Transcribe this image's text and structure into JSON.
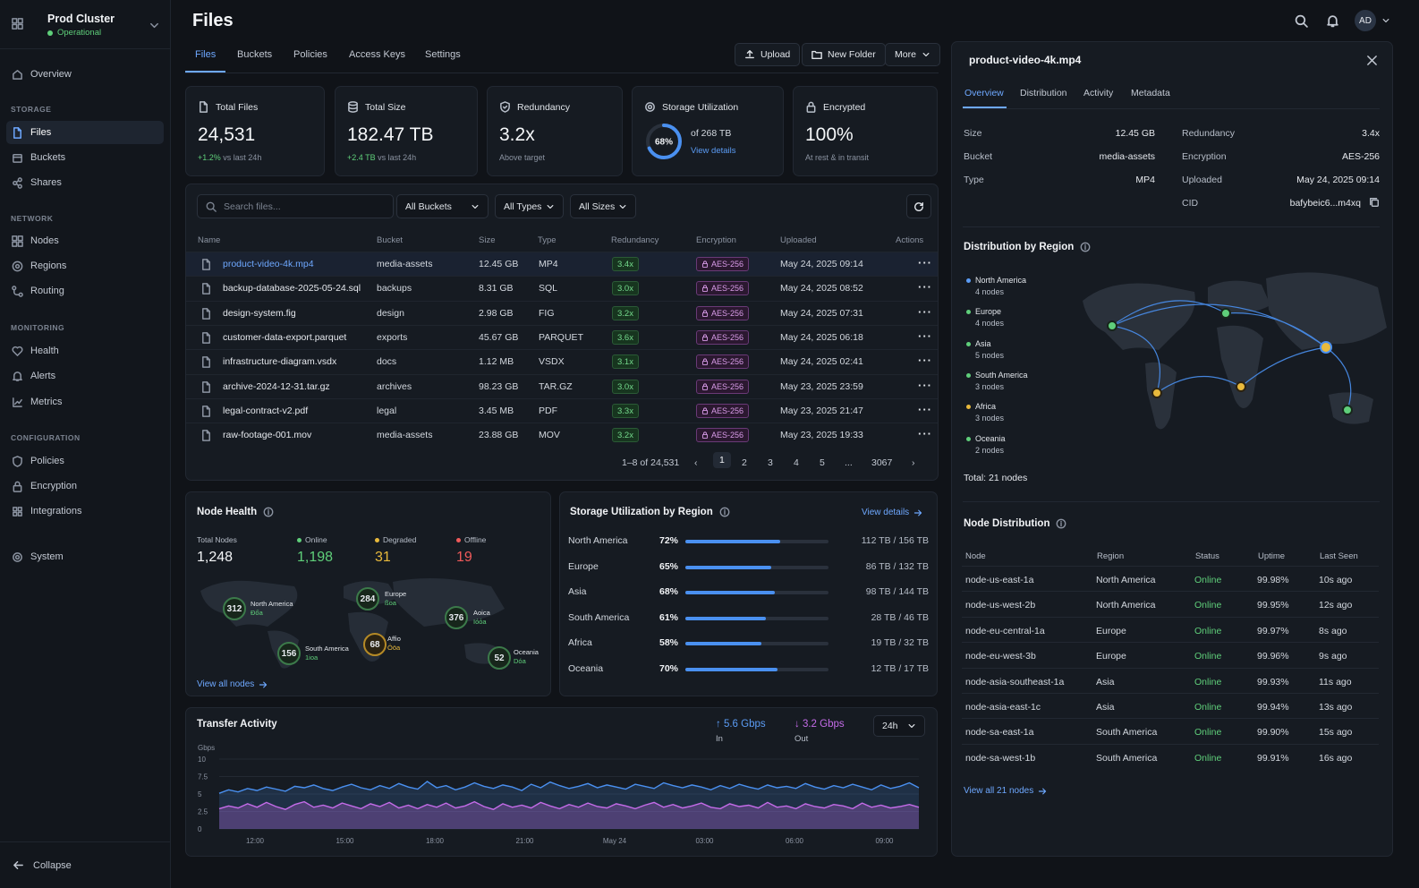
{
  "sidebar": {
    "cluster_name": "Prod Cluster",
    "cluster_status": "Operational",
    "overview": "Overview",
    "sections": {
      "storage": "STORAGE",
      "network": "NETWORK",
      "monitoring": "MONITORING",
      "configuration": "CONFIGURATION"
    },
    "items": {
      "files": "Files",
      "buckets": "Buckets",
      "shares": "Shares",
      "nodes": "Nodes",
      "regions": "Regions",
      "routing": "Routing",
      "health": "Health",
      "alerts": "Alerts",
      "metrics": "Metrics",
      "policies": "Policies",
      "encryption": "Encryption",
      "integrations": "Integrations",
      "system": "System"
    },
    "collapse": "Collapse"
  },
  "header": {
    "title": "Files",
    "avatar": "AD",
    "tabs": [
      "Files",
      "Buckets",
      "Policies",
      "Access Keys",
      "Settings"
    ],
    "upload": "Upload",
    "new_folder": "New Folder",
    "more": "More"
  },
  "stats": {
    "total_files": {
      "label": "Total Files",
      "value": "24,531",
      "delta": "+1.2%",
      "delta_suffix": "vs last 24h"
    },
    "total_size": {
      "label": "Total Size",
      "value": "182.47 TB",
      "delta": "+2.4 TB",
      "delta_suffix": "vs last 24h"
    },
    "redundancy": {
      "label": "Redundancy",
      "value": "3.2x",
      "sub": "Above target"
    },
    "utilization": {
      "label": "Storage Utilization",
      "percent": 68,
      "percent_text": "68%",
      "of": "of 268 TB",
      "link": "View details"
    },
    "encrypted": {
      "label": "Encrypted",
      "value": "100%",
      "sub": "At rest & in transit"
    }
  },
  "filters": {
    "search_placeholder": "Search files...",
    "buckets": "All Buckets",
    "types": "All Types",
    "sizes": "All Sizes"
  },
  "table": {
    "headers": [
      "Name",
      "Bucket",
      "Size",
      "Type",
      "Redundancy",
      "Encryption",
      "Uploaded",
      "Actions"
    ],
    "rows": [
      {
        "name": "product-video-4k.mp4",
        "bucket": "media-assets",
        "size": "12.45 GB",
        "type": "MP4",
        "redundancy": "3.4x",
        "encryption": "AES-256",
        "uploaded": "May 24, 2025 09:14"
      },
      {
        "name": "backup-database-2025-05-24.sql",
        "bucket": "backups",
        "size": "8.31 GB",
        "type": "SQL",
        "redundancy": "3.0x",
        "encryption": "AES-256",
        "uploaded": "May 24, 2025 08:52"
      },
      {
        "name": "design-system.fig",
        "bucket": "design",
        "size": "2.98 GB",
        "type": "FIG",
        "redundancy": "3.2x",
        "encryption": "AES-256",
        "uploaded": "May 24, 2025 07:31"
      },
      {
        "name": "customer-data-export.parquet",
        "bucket": "exports",
        "size": "45.67 GB",
        "type": "PARQUET",
        "redundancy": "3.6x",
        "encryption": "AES-256",
        "uploaded": "May 24, 2025 06:18"
      },
      {
        "name": "infrastructure-diagram.vsdx",
        "bucket": "docs",
        "size": "1.12 MB",
        "type": "VSDX",
        "redundancy": "3.1x",
        "encryption": "AES-256",
        "uploaded": "May 24, 2025 02:41"
      },
      {
        "name": "archive-2024-12-31.tar.gz",
        "bucket": "archives",
        "size": "98.23 GB",
        "type": "TAR.GZ",
        "redundancy": "3.0x",
        "encryption": "AES-256",
        "uploaded": "May 23, 2025 23:59"
      },
      {
        "name": "legal-contract-v2.pdf",
        "bucket": "legal",
        "size": "3.45 MB",
        "type": "PDF",
        "redundancy": "3.3x",
        "encryption": "AES-256",
        "uploaded": "May 23, 2025 21:47"
      },
      {
        "name": "raw-footage-001.mov",
        "bucket": "media-assets",
        "size": "23.88 GB",
        "type": "MOV",
        "redundancy": "3.2x",
        "encryption": "AES-256",
        "uploaded": "May 23, 2025 19:33"
      }
    ],
    "pagination": {
      "range": "1–8 of 24,531",
      "pages": [
        "1",
        "2",
        "3",
        "4",
        "5",
        "...",
        "3067"
      ]
    }
  },
  "node_health": {
    "title": "Node Health",
    "total_label": "Total Nodes",
    "total": "1,248",
    "online_label": "Online",
    "online": "1,198",
    "degraded_label": "Degraded",
    "degraded": "31",
    "offline_label": "Offline",
    "offline": "19",
    "regions": [
      {
        "count": "312",
        "name": "North America",
        "sub": "Đốa"
      },
      {
        "count": "284",
        "name": "Europe",
        "sub": "ßoa"
      },
      {
        "count": "376",
        "name": "Aoiса",
        "sub": "Ιόόa"
      },
      {
        "count": "156",
        "name": "South America",
        "sub": "1ioa"
      },
      {
        "count": "68",
        "name": "Affio",
        "sub": "Ööa"
      },
      {
        "count": "52",
        "name": "Oceania",
        "sub": "Dóa"
      }
    ],
    "link": "View all nodes"
  },
  "storage_region": {
    "title": "Storage Utilization by Region",
    "link": "View details",
    "rows": [
      {
        "region": "North America",
        "percent": 72,
        "percent_text": "72%",
        "cap": "112 TB / 156 TB"
      },
      {
        "region": "Europe",
        "percent": 65,
        "percent_text": "65%",
        "cap": "86 TB / 132 TB"
      },
      {
        "region": "Asia",
        "percent": 68,
        "percent_text": "68%",
        "cap": "98 TB / 144 TB"
      },
      {
        "region": "South America",
        "percent": 61,
        "percent_text": "61%",
        "cap": "28 TB / 46 TB"
      },
      {
        "region": "Africa",
        "percent": 58,
        "percent_text": "58%",
        "cap": "19 TB / 32 TB"
      },
      {
        "region": "Oceania",
        "percent": 70,
        "percent_text": "70%",
        "cap": "12 TB / 17 TB"
      }
    ]
  },
  "transfer": {
    "title": "Transfer Activity",
    "in_value": "5.6 Gbps",
    "in_label": "In",
    "out_value": "3.2 Gbps",
    "out_label": "Out",
    "range": "24h"
  },
  "chart_data": {
    "type": "area",
    "ylabel": "Gbps",
    "ylim": [
      0,
      10
    ],
    "yticks": [
      "0",
      "2.5",
      "5",
      "7.5",
      "10"
    ],
    "xticks": [
      "12:00",
      "15:00",
      "18:00",
      "21:00",
      "May 24",
      "03:00",
      "06:00",
      "09:00"
    ],
    "series": [
      {
        "values": [
          5.1,
          5.6,
          5.3,
          5.8,
          5.5,
          6.0,
          5.7,
          5.4,
          6.1,
          5.9,
          6.3,
          5.8,
          5.5,
          6.0,
          6.4,
          5.9,
          5.6,
          6.2,
          5.8,
          6.5,
          6.0,
          5.7,
          6.8,
          5.9,
          6.2,
          5.6,
          6.0,
          6.6,
          6.1,
          5.8,
          6.3,
          6.0,
          5.5,
          6.4,
          5.9,
          6.7,
          6.2,
          5.8,
          6.1,
          6.5,
          5.9,
          6.3,
          6.0,
          5.7,
          6.4,
          6.1,
          5.8,
          6.6,
          6.2,
          5.9,
          6.3,
          6.0,
          5.6,
          6.2,
          5.8,
          6.4,
          6.0,
          5.7,
          6.3,
          5.9,
          6.1,
          5.8,
          6.5,
          6.0,
          5.7,
          6.2,
          5.9,
          6.4,
          6.0,
          5.6,
          6.3,
          5.8,
          6.1,
          6.6,
          5.9
        ]
      },
      {
        "values": [
          2.9,
          3.3,
          3.0,
          3.6,
          3.1,
          3.8,
          3.2,
          2.8,
          3.5,
          3.9,
          3.1,
          3.4,
          3.0,
          3.7,
          3.3,
          2.9,
          3.6,
          3.2,
          3.8,
          3.0,
          3.4,
          2.9,
          3.5,
          3.1,
          3.7,
          3.0,
          3.3,
          3.9,
          3.2,
          2.8,
          3.6,
          3.1,
          3.4,
          3.0,
          3.8,
          3.3,
          2.9,
          3.5,
          3.1,
          3.7,
          3.2,
          3.0,
          3.6,
          3.3,
          2.9,
          3.4,
          3.8,
          3.1,
          3.5,
          3.0,
          3.3,
          3.7,
          3.1,
          2.9,
          3.6,
          3.2,
          3.4,
          3.0,
          3.8,
          3.1,
          3.3,
          2.9,
          3.6,
          3.2,
          3.0,
          3.5,
          3.3,
          2.9,
          3.7,
          3.1,
          3.4,
          3.0,
          3.2,
          3.5,
          3.1
        ]
      }
    ],
    "colors": [
      "#4a90f0",
      "#c46be8"
    ]
  },
  "detail": {
    "title": "product-video-4k.mp4",
    "tabs": [
      "Overview",
      "Distribution",
      "Activity",
      "Metadata"
    ],
    "left": [
      {
        "k": "Size",
        "v": "12.45 GB"
      },
      {
        "k": "Bucket",
        "v": "media-assets"
      },
      {
        "k": "Type",
        "v": "MP4"
      }
    ],
    "right": [
      {
        "k": "Redundancy",
        "v": "3.4x"
      },
      {
        "k": "Encryption",
        "v": "AES-256"
      },
      {
        "k": "Uploaded",
        "v": "May 24, 2025 09:14"
      },
      {
        "k": "CID",
        "v": "bafybeic6...m4xq"
      }
    ],
    "dist_title": "Distribution by Region",
    "dist_regions": [
      {
        "name": "North America",
        "nodes": "4 nodes",
        "color": "#5b9cf5"
      },
      {
        "name": "Europe",
        "nodes": "4 nodes",
        "color": "#5fcf7a"
      },
      {
        "name": "Asia",
        "nodes": "5 nodes",
        "color": "#5fcf7a"
      },
      {
        "name": "South America",
        "nodes": "3 nodes",
        "color": "#5fcf7a"
      },
      {
        "name": "Africa",
        "nodes": "3 nodes",
        "color": "#e8b93c"
      },
      {
        "name": "Oceania",
        "nodes": "2 nodes",
        "color": "#5fcf7a"
      }
    ],
    "total": "Total: 21 nodes",
    "node_dist_title": "Node Distribution",
    "nd_headers": [
      "Node",
      "Region",
      "Status",
      "Uptime",
      "Last Seen"
    ],
    "nd_rows": [
      {
        "node": "node-us-east-1a",
        "region": "North America",
        "status": "Online",
        "uptime": "99.98%",
        "seen": "10s ago"
      },
      {
        "node": "node-us-west-2b",
        "region": "North America",
        "status": "Online",
        "uptime": "99.95%",
        "seen": "12s ago"
      },
      {
        "node": "node-eu-central-1a",
        "region": "Europe",
        "status": "Online",
        "uptime": "99.97%",
        "seen": "8s ago"
      },
      {
        "node": "node-eu-west-3b",
        "region": "Europe",
        "status": "Online",
        "uptime": "99.96%",
        "seen": "9s ago"
      },
      {
        "node": "node-asia-southeast-1a",
        "region": "Asia",
        "status": "Online",
        "uptime": "99.93%",
        "seen": "11s ago"
      },
      {
        "node": "node-asia-east-1c",
        "region": "Asia",
        "status": "Online",
        "uptime": "99.94%",
        "seen": "13s ago"
      },
      {
        "node": "node-sa-east-1a",
        "region": "South America",
        "status": "Online",
        "uptime": "99.90%",
        "seen": "15s ago"
      },
      {
        "node": "node-sa-west-1b",
        "region": "South America",
        "status": "Online",
        "uptime": "99.91%",
        "seen": "16s ago"
      }
    ],
    "view_all": "View all 21 nodes"
  }
}
